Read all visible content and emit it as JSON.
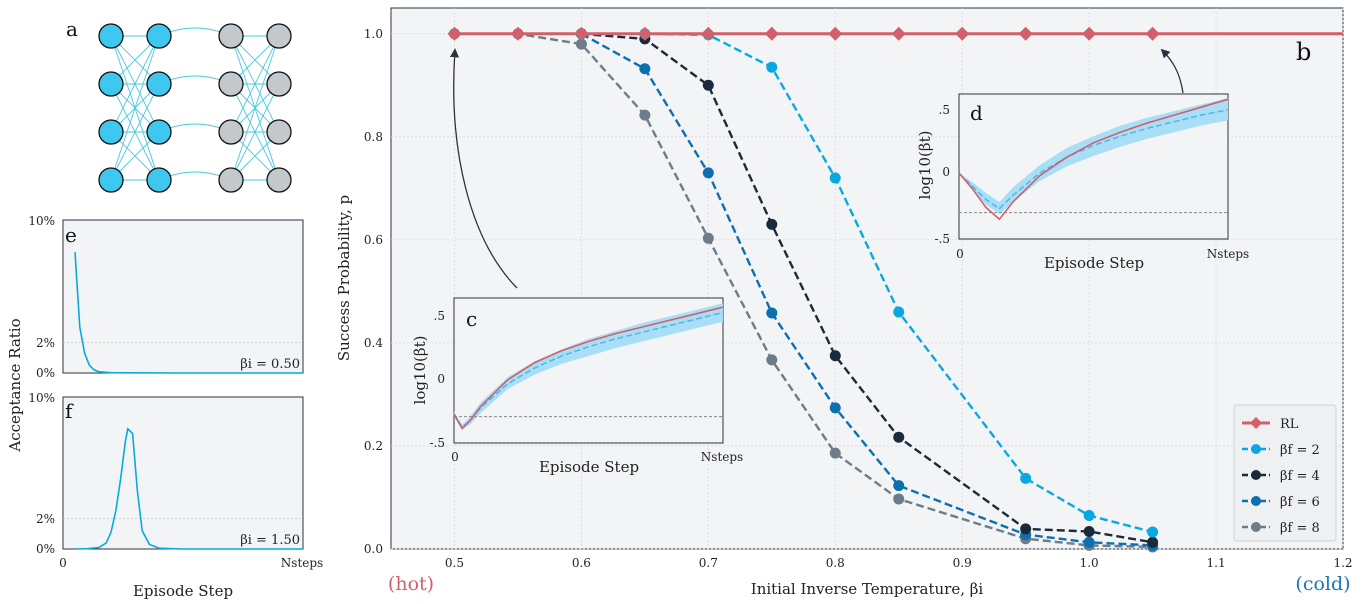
{
  "panels": {
    "a": "a",
    "b": "b",
    "c": "c",
    "d": "d",
    "e": "e",
    "f": "f"
  },
  "hot_label": "(hot)",
  "cold_label": "(cold)",
  "colors": {
    "rl": "#d1606a",
    "bf2": "#0aa8e0",
    "bf4": "#1b2a3a",
    "bf6": "#0b6fb0",
    "bf8": "#6d7c88",
    "hot": "#d1606a",
    "cold": "#1a76b5",
    "neuron_blue": "#3ec8ef",
    "neuron_grey": "#c3c8cc",
    "link": "#48c8e0"
  },
  "chart_data": [
    {
      "id": "b",
      "type": "line",
      "xlabel": "Initial Inverse Temperature, βi",
      "ylabel": "Success Probability, p",
      "xlim": [
        0.45,
        1.2
      ],
      "ylim": [
        0.0,
        1.05
      ],
      "xticks": [
        "0.5",
        "0.6",
        "0.7",
        "0.8",
        "0.9",
        "1.0",
        "1.1",
        "1.2"
      ],
      "yticks": [
        "0.0",
        "0.2",
        "0.4",
        "0.6",
        "0.8",
        "1.0"
      ],
      "grid": true,
      "legend": "bottom-right",
      "series": [
        {
          "name": "RL",
          "x": [
            0.5,
            0.55,
            0.6,
            0.65,
            0.7,
            0.75,
            0.8,
            0.85,
            0.9,
            0.95,
            1.0,
            1.05
          ],
          "y": [
            1.0,
            1.0,
            1.0,
            1.0,
            1.0,
            1.0,
            1.0,
            1.0,
            1.0,
            1.0,
            1.0,
            1.0
          ]
        },
        {
          "name": "βf = 2",
          "x": [
            0.6,
            0.65,
            0.7,
            0.75,
            0.8,
            0.85,
            0.95,
            1.0,
            1.05
          ],
          "y": [
            1.0,
            1.0,
            0.998,
            0.935,
            0.72,
            0.46,
            0.137,
            0.065,
            0.033
          ]
        },
        {
          "name": "βf = 4",
          "x": [
            0.6,
            0.65,
            0.7,
            0.75,
            0.8,
            0.85,
            0.95,
            1.0,
            1.05
          ],
          "y": [
            1.0,
            0.99,
            0.9,
            0.63,
            0.375,
            0.217,
            0.039,
            0.034,
            0.013
          ]
        },
        {
          "name": "βf = 6",
          "x": [
            0.6,
            0.65,
            0.7,
            0.75,
            0.8,
            0.85,
            0.95,
            1.0,
            1.05
          ],
          "y": [
            1.0,
            0.932,
            0.73,
            0.458,
            0.274,
            0.123,
            0.028,
            0.013,
            0.007
          ]
        },
        {
          "name": "βf = 8",
          "x": [
            0.5,
            0.55,
            0.6,
            0.65,
            0.7,
            0.75,
            0.8,
            0.85,
            0.95,
            1.0,
            1.05
          ],
          "y": [
            1.0,
            1.0,
            0.98,
            0.842,
            0.603,
            0.367,
            0.186,
            0.097,
            0.02,
            0.007,
            0.004
          ]
        }
      ]
    },
    {
      "id": "c",
      "type": "line",
      "xlabel": "Episode Step",
      "ylabel": "log10(βt)",
      "xticks": [
        "0",
        "Nsteps"
      ],
      "yticks": [
        ".5",
        "0",
        "-.5"
      ],
      "ylim": [
        -0.5,
        0.6
      ],
      "reference_y": -0.3,
      "series": [
        {
          "name": "RL",
          "x": [
            0,
            0.03,
            0.06,
            0.1,
            0.2,
            0.3,
            0.4,
            0.5,
            0.6,
            0.7,
            0.8,
            0.9,
            1.0
          ],
          "y": [
            -0.28,
            -0.39,
            -0.33,
            -0.22,
            -0.02,
            0.11,
            0.2,
            0.27,
            0.33,
            0.38,
            0.43,
            0.48,
            0.53
          ]
        },
        {
          "name": "mean",
          "x": [
            0,
            0.03,
            0.06,
            0.1,
            0.2,
            0.3,
            0.4,
            0.5,
            0.6,
            0.7,
            0.8,
            0.9,
            1.0
          ],
          "y": [
            -0.28,
            -0.38,
            -0.33,
            -0.23,
            -0.05,
            0.07,
            0.16,
            0.23,
            0.29,
            0.34,
            0.39,
            0.44,
            0.49
          ]
        },
        {
          "name": "band_low",
          "x": [
            0,
            0.03,
            0.06,
            0.1,
            0.2,
            0.3,
            0.4,
            0.5,
            0.6,
            0.7,
            0.8,
            0.9,
            1.0
          ],
          "y": [
            -0.3,
            -0.4,
            -0.36,
            -0.27,
            -0.09,
            0.02,
            0.1,
            0.16,
            0.22,
            0.27,
            0.32,
            0.37,
            0.42
          ]
        },
        {
          "name": "band_high",
          "x": [
            0,
            0.03,
            0.06,
            0.1,
            0.2,
            0.3,
            0.4,
            0.5,
            0.6,
            0.7,
            0.8,
            0.9,
            1.0
          ],
          "y": [
            -0.26,
            -0.36,
            -0.3,
            -0.19,
            0.0,
            0.12,
            0.21,
            0.29,
            0.35,
            0.41,
            0.46,
            0.51,
            0.56
          ]
        }
      ]
    },
    {
      "id": "d",
      "type": "line",
      "xlabel": "Episode Step",
      "ylabel": "log10(βt)",
      "xticks": [
        "0",
        "Nsteps"
      ],
      "yticks": [
        ".5",
        "0",
        "-.5"
      ],
      "ylim": [
        -0.5,
        0.6
      ],
      "reference_y": -0.3,
      "series": [
        {
          "name": "RL",
          "x": [
            0,
            0.05,
            0.1,
            0.15,
            0.2,
            0.3,
            0.4,
            0.5,
            0.6,
            0.7,
            0.8,
            0.9,
            1.0
          ],
          "y": [
            0.0,
            -0.12,
            -0.26,
            -0.35,
            -0.22,
            -0.02,
            0.12,
            0.23,
            0.31,
            0.38,
            0.44,
            0.5,
            0.56
          ]
        },
        {
          "name": "mean",
          "x": [
            0,
            0.05,
            0.1,
            0.15,
            0.2,
            0.3,
            0.4,
            0.5,
            0.6,
            0.7,
            0.8,
            0.9,
            1.0
          ],
          "y": [
            0.0,
            -0.1,
            -0.2,
            -0.27,
            -0.17,
            0.0,
            0.12,
            0.21,
            0.28,
            0.34,
            0.39,
            0.44,
            0.48
          ]
        },
        {
          "name": "band_low",
          "x": [
            0,
            0.05,
            0.1,
            0.15,
            0.2,
            0.3,
            0.4,
            0.5,
            0.6,
            0.7,
            0.8,
            0.9,
            1.0
          ],
          "y": [
            0.0,
            -0.13,
            -0.24,
            -0.31,
            -0.22,
            -0.06,
            0.05,
            0.13,
            0.2,
            0.26,
            0.31,
            0.36,
            0.4
          ]
        },
        {
          "name": "band_high",
          "x": [
            0,
            0.05,
            0.1,
            0.15,
            0.2,
            0.3,
            0.4,
            0.5,
            0.6,
            0.7,
            0.8,
            0.9,
            1.0
          ],
          "y": [
            0.0,
            -0.07,
            -0.15,
            -0.22,
            -0.11,
            0.06,
            0.19,
            0.28,
            0.36,
            0.42,
            0.47,
            0.52,
            0.57
          ]
        }
      ]
    },
    {
      "id": "e",
      "type": "line",
      "xlabel": "",
      "ylabel": "Acceptance Ratio",
      "yticks": [
        "10%",
        "2%",
        "0%"
      ],
      "ylim": [
        0,
        10
      ],
      "annotation": "βi = 0.50",
      "series": [
        {
          "name": "acceptance",
          "x": [
            0.05,
            0.07,
            0.09,
            0.11,
            0.13,
            0.15,
            0.2,
            0.3,
            0.5,
            0.8,
            1.0
          ],
          "y": [
            7.9,
            3.0,
            1.3,
            0.5,
            0.2,
            0.08,
            0.02,
            0.01,
            0.0,
            0.0,
            0.0
          ]
        }
      ]
    },
    {
      "id": "f",
      "type": "line",
      "xlabel": "Episode Step",
      "ylabel": "Acceptance Ratio",
      "xticks": [
        "0",
        "Nsteps"
      ],
      "yticks": [
        "10%",
        "2%",
        "0%"
      ],
      "ylim": [
        0,
        10
      ],
      "annotation": "βi = 1.50",
      "series": [
        {
          "name": "acceptance",
          "x": [
            0.05,
            0.1,
            0.15,
            0.18,
            0.2,
            0.22,
            0.24,
            0.26,
            0.27,
            0.29,
            0.31,
            0.33,
            0.36,
            0.4,
            0.5,
            0.7,
            1.0
          ],
          "y": [
            0.0,
            0.02,
            0.1,
            0.4,
            1.1,
            2.5,
            4.6,
            7.1,
            7.9,
            7.6,
            3.8,
            1.2,
            0.3,
            0.05,
            0.0,
            0.0,
            0.0
          ]
        }
      ]
    }
  ]
}
